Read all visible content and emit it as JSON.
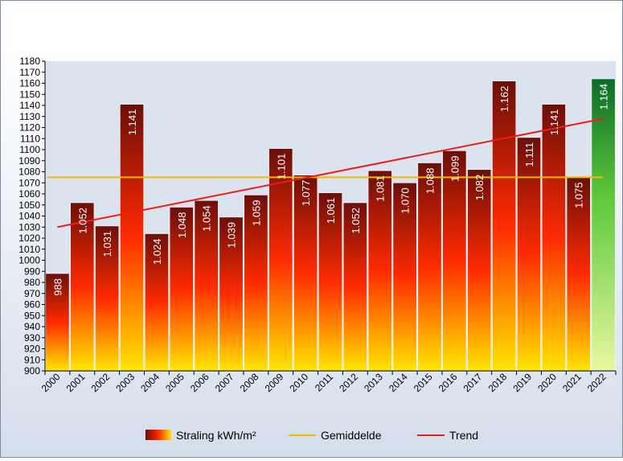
{
  "chart_data": {
    "type": "bar",
    "categories": [
      "2000",
      "2001",
      "2002",
      "2003",
      "2004",
      "2005",
      "2006",
      "2007",
      "2008",
      "2009",
      "2010",
      "2011",
      "2012",
      "2013",
      "2014",
      "2015",
      "2016",
      "2017",
      "2018",
      "2019",
      "2020",
      "2021",
      "2022"
    ],
    "values": [
      988,
      1052,
      1031,
      1141,
      1024,
      1048,
      1054,
      1039,
      1059,
      1101,
      1077,
      1061,
      1052,
      1081,
      1070,
      1088,
      1099,
      1082,
      1162,
      1111,
      1141,
      1075,
      1164
    ],
    "data_labels": [
      "988",
      "1.052",
      "1.031",
      "1.141",
      "1.024",
      "1.048",
      "1.054",
      "1.039",
      "1.059",
      "1.101",
      "1.077",
      "1.061",
      "1.052",
      "1.081",
      "1.070",
      "1.088",
      "1.099",
      "1.082",
      "1.162",
      "1.111",
      "1.141",
      "1.075",
      "1.164"
    ],
    "series": [
      {
        "name": "Straling kWh/m²",
        "type": "bar"
      },
      {
        "name": "Gemiddelde",
        "type": "line",
        "value": 1075,
        "color": "#f5b800"
      },
      {
        "name": "Trend",
        "type": "line",
        "start": 1030,
        "end": 1128,
        "color": "#e8201c"
      }
    ],
    "highlight_category": "2022",
    "ylim": [
      900,
      1180
    ],
    "ytick_step": 10,
    "ytick_labels": [
      "900",
      "910",
      "920",
      "930",
      "940",
      "950",
      "960",
      "970",
      "980",
      "990",
      "1000",
      "1010",
      "1020",
      "1030",
      "1040",
      "1050",
      "1060",
      "1070",
      "1080",
      "1090",
      "1100",
      "1110",
      "1120",
      "1130",
      "1140",
      "1150",
      "1160",
      "1170",
      "1180"
    ],
    "grid": false,
    "legend_position": "bottom",
    "colors": {
      "bar_top": "#6b0f0a",
      "bar_mid": "#ff2a00",
      "bar_bottom": "#ffe600",
      "highlight_top": "#0b6b2a",
      "highlight_mid": "#5cc83a",
      "highlight_bottom": "#e8f8a0"
    }
  }
}
